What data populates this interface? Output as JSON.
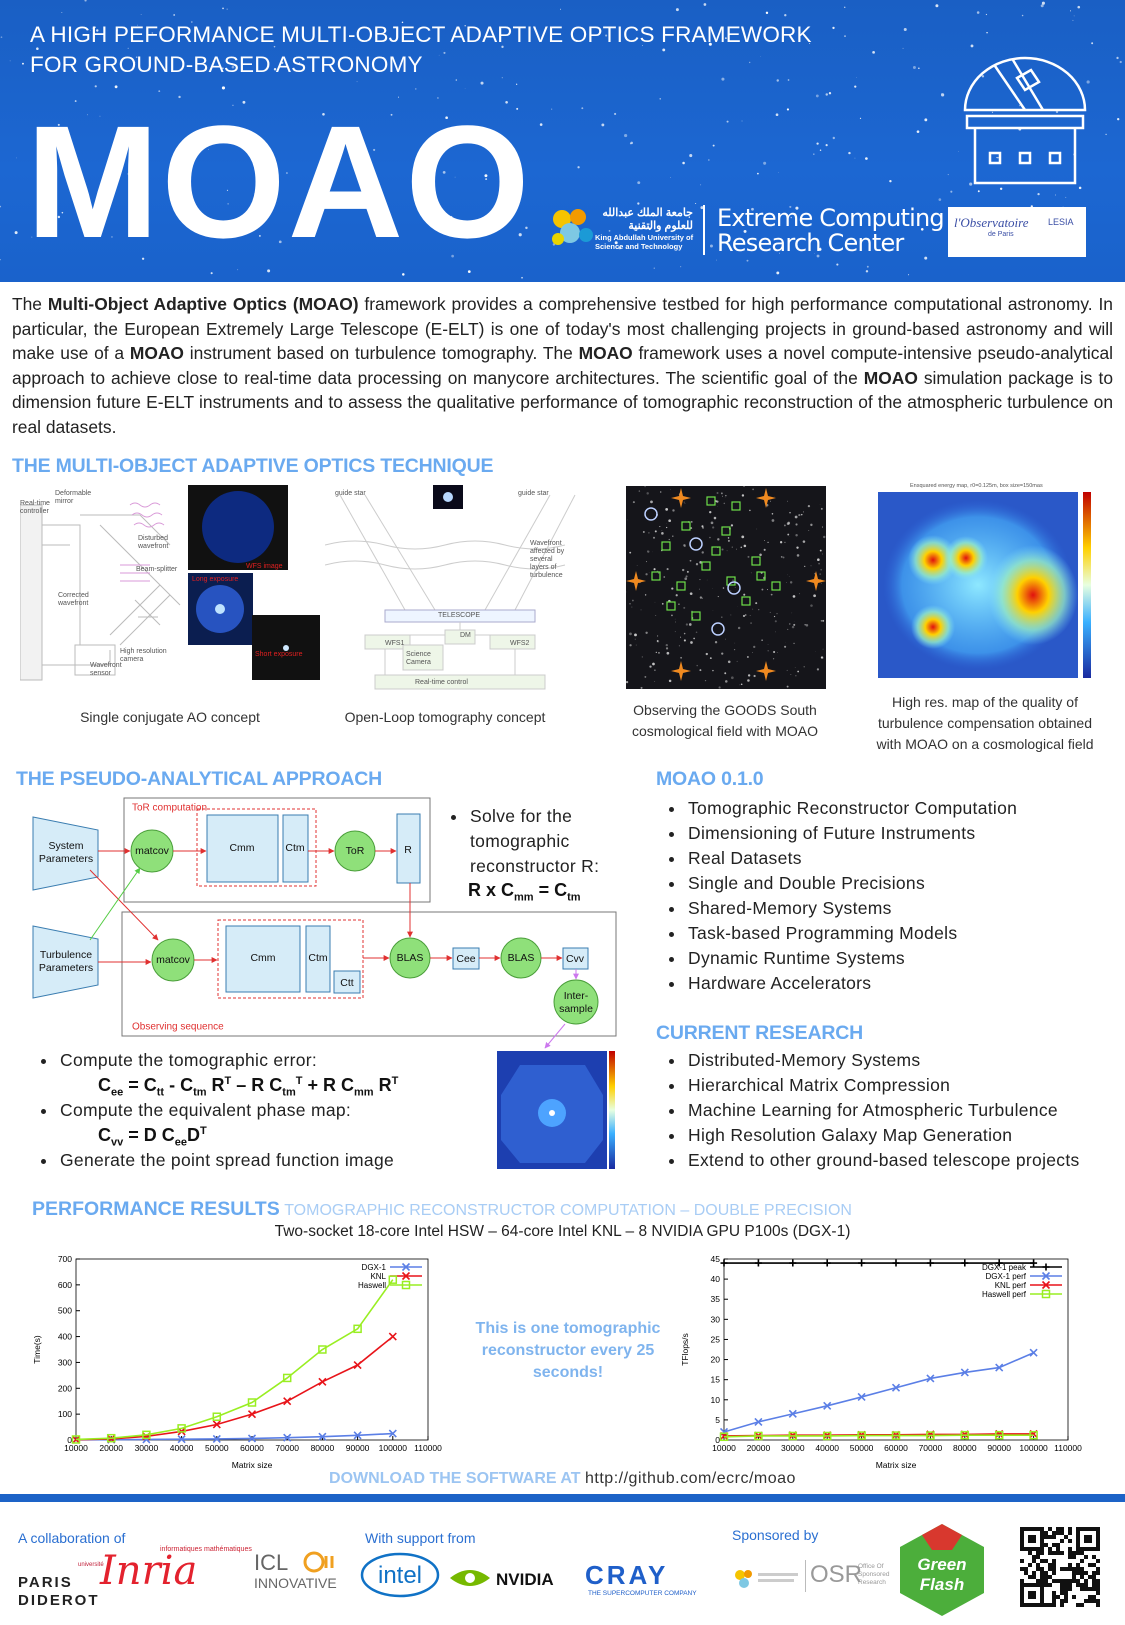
{
  "header": {
    "title": [
      "A HIGH PEFORMANCE MULTI-OBJECT ADAPTIVE OPTICS FRAMEWORK",
      "FOR GROUND-BASED ASTRONOMY"
    ],
    "acronym": "MOAO",
    "kaust": {
      "arabic": "جامعة الملك عبدالله للعلوم والتقنية",
      "name": [
        "King Abdullah University of",
        "Science and Technology"
      ]
    },
    "ecrc": [
      "Extreme Computing",
      "Research Center"
    ],
    "observatoire": {
      "name": "l'Observatoire",
      "sub": "de Paris",
      "lesia": "LESIA"
    }
  },
  "intro": [
    {
      "text": "The ",
      "bold": false
    },
    {
      "text": "Multi-Object Adaptive Optics (MOAO)",
      "bold": true
    },
    {
      "text": " framework provides a comprehensive testbed for high performance computational astronomy. In particular, the European Extremely Large Telescope (E-ELT) is one of today's most challenging projects in ground-based astronomy and will make use of a ",
      "bold": false
    },
    {
      "text": "MOAO",
      "bold": true
    },
    {
      "text": " instrument based on turbulence tomography. The ",
      "bold": false
    },
    {
      "text": "MOAO",
      "bold": true
    },
    {
      "text": " framework uses a novel compute-intensive pseudo-analytical approach to achieve close to real-time data processing on manycore architectures. The scientific goal of the ",
      "bold": false
    },
    {
      "text": "MOAO",
      "bold": true
    },
    {
      "text": " simulation package is to dimension future E-ELT instruments and to assess the qualitative performance of tomographic reconstruction of the atmospheric turbulence on real datasets.",
      "bold": false
    }
  ],
  "technique": {
    "title": "THE MULTI-OBJECT ADAPTIVE OPTICS TECHNIQUE",
    "figures": [
      {
        "caption": [
          "Single conjugate AO concept"
        ],
        "labels": [
          "Real-time controller",
          "Deformable mirror",
          "Disturbed wavefront",
          "Beam-splitter",
          "Corrected wavefront",
          "High resolution camera",
          "Wavefront sensor",
          "WFS image",
          "Long exposure",
          "Short exposure"
        ]
      },
      {
        "caption": [
          "Open-Loop tomography concept"
        ],
        "labels": [
          "guide star",
          "guide star",
          "Wavefront affected by several layers of turbulence",
          "TELESCOPE",
          "DM",
          "WFS1",
          "WFS2",
          "Science Camera",
          "Real-time control"
        ]
      },
      {
        "caption": [
          "Observing the GOODS South",
          "cosmological field with MOAO"
        ]
      },
      {
        "caption": [
          "High res. map of the quality of",
          "turbulence compensation obtained",
          "with MOAO on a cosmological field"
        ],
        "labels": [
          "Ensquared energy map, r0=0.125m, box size=150mas"
        ]
      }
    ]
  },
  "pseudo": {
    "title": "THE PSEUDO-ANALYTICAL APPROACH",
    "diagram": {
      "tor_group": "ToR computation",
      "obs_group": "Observing sequence",
      "system": [
        "System",
        "Parameters"
      ],
      "turbulence": [
        "Turbulence",
        "Parameters"
      ],
      "matcov": "matcov",
      "cmm": "Cmm",
      "ctm": "Ctm",
      "ctt": "Ctt",
      "tor": "ToR",
      "r": "R",
      "blas": "BLAS",
      "cee": "Cee",
      "cvv": "Cvv",
      "intersample": [
        "Inter-",
        "sample"
      ]
    },
    "solve": [
      "Solve for the",
      "tomographic",
      "reconstructor R:"
    ],
    "equations": [
      [
        {
          "text": "R x C",
          "pos": "base"
        },
        {
          "text": "mm",
          "pos": "sub"
        },
        {
          "text": " = C",
          "pos": "base"
        },
        {
          "text": "tm",
          "pos": "sub"
        }
      ],
      [
        {
          "text": "C",
          "pos": "base"
        },
        {
          "text": "ee",
          "pos": "sub"
        },
        {
          "text": " = C",
          "pos": "base"
        },
        {
          "text": "tt",
          "pos": "sub"
        },
        {
          "text": " - C",
          "pos": "base"
        },
        {
          "text": "tm",
          "pos": "sub"
        },
        {
          "text": " R",
          "pos": "base"
        },
        {
          "text": "T",
          "pos": "sup"
        },
        {
          "text": " – R C",
          "pos": "base"
        },
        {
          "text": "tm",
          "pos": "sub"
        },
        {
          "text": "T",
          "pos": "sup"
        },
        {
          "text": " + R C",
          "pos": "base"
        },
        {
          "text": "mm",
          "pos": "sub"
        },
        {
          "text": " R",
          "pos": "base"
        },
        {
          "text": "T",
          "pos": "sup"
        }
      ],
      [
        {
          "text": "C",
          "pos": "base"
        },
        {
          "text": "vv",
          "pos": "sub"
        },
        {
          "text": " = D C",
          "pos": "base"
        },
        {
          "text": "ee",
          "pos": "sub"
        },
        {
          "text": "D",
          "pos": "base"
        },
        {
          "text": "T",
          "pos": "sup"
        }
      ]
    ],
    "steps": [
      "Compute the tomographic error:",
      "Compute the equivalent phase map:",
      "Generate the point spread function image"
    ]
  },
  "release": {
    "title": "MOAO 0.1.0",
    "items": [
      "Tomographic Reconstructor Computation",
      "Dimensioning of Future Instruments",
      "Real Datasets",
      "Single and Double Precisions",
      "Shared-Memory Systems",
      "Task-based Programming Models",
      "Dynamic Runtime Systems",
      "Hardware Accelerators"
    ]
  },
  "research": {
    "title": "CURRENT RESEARCH",
    "items": [
      "Distributed-Memory Systems",
      "Hierarchical Matrix Compression",
      "Machine Learning for Atmospheric Turbulence",
      "High Resolution Galaxy Map Generation",
      "Extend to other ground-based telescope projects"
    ]
  },
  "performance": {
    "title": "PERFORMANCE RESULTS",
    "subtitle": "TOMOGRAPHIC RECONSTRUCTOR COMPUTATION – DOUBLE PRECISION",
    "platforms": "Two-socket 18-core Intel HSW – 64-core Intel KNL – 8 NVIDIA GPU P100s (DGX-1)",
    "note": "This is one tomographic reconstructor every 25 seconds!",
    "download": "DOWNLOAD THE SOFTWARE AT",
    "url": "http://github.com/ecrc/moao"
  },
  "chart_data": [
    {
      "type": "line",
      "xlabel": "Matrix size",
      "ylabel": "Time(s)",
      "x": [
        10000,
        20000,
        30000,
        40000,
        50000,
        60000,
        70000,
        80000,
        90000,
        100000
      ],
      "xlim": [
        10000,
        110000
      ],
      "xticks": [
        10000,
        20000,
        30000,
        40000,
        50000,
        60000,
        70000,
        80000,
        90000,
        100000,
        110000
      ],
      "ylim": [
        0,
        700
      ],
      "yticks": [
        0,
        100,
        200,
        300,
        400,
        500,
        600,
        700
      ],
      "legend": "top-right",
      "series": [
        {
          "name": "DGX-1",
          "color": "#5b7fe6",
          "marker": "x",
          "values": [
            0.5,
            1,
            2,
            3,
            4,
            6,
            9,
            13,
            18,
            25
          ]
        },
        {
          "name": "KNL",
          "color": "#e8141a",
          "marker": "x",
          "values": [
            1,
            4,
            14,
            33,
            60,
            100,
            150,
            225,
            290,
            400
          ]
        },
        {
          "name": "Haswell",
          "color": "#99ee22",
          "marker": "square",
          "values": [
            2,
            7,
            20,
            45,
            90,
            145,
            240,
            350,
            430,
            620
          ]
        }
      ]
    },
    {
      "type": "line",
      "xlabel": "Matrix size",
      "ylabel": "TFlops/s",
      "x": [
        10000,
        20000,
        30000,
        40000,
        50000,
        60000,
        70000,
        80000,
        90000,
        100000
      ],
      "xlim": [
        10000,
        110000
      ],
      "xticks": [
        10000,
        20000,
        30000,
        40000,
        50000,
        60000,
        70000,
        80000,
        90000,
        100000,
        110000
      ],
      "ylim": [
        0,
        45
      ],
      "yticks": [
        0,
        5,
        10,
        15,
        20,
        25,
        30,
        35,
        40,
        45
      ],
      "legend": "top-right",
      "series": [
        {
          "name": "DGX-1 peak",
          "color": "#000000",
          "marker": "plus",
          "values": [
            44,
            44,
            44,
            44,
            44,
            44,
            44,
            44,
            44,
            44
          ]
        },
        {
          "name": "DGX-1 perf",
          "color": "#5b7fe6",
          "marker": "x",
          "values": [
            2,
            4.5,
            6.5,
            8.5,
            10.7,
            13,
            15.3,
            16.8,
            18,
            21.7
          ]
        },
        {
          "name": "KNL perf",
          "color": "#e8141a",
          "marker": "x",
          "values": [
            1,
            1.1,
            1.2,
            1.2,
            1.3,
            1.3,
            1.4,
            1.4,
            1.5,
            1.5
          ]
        },
        {
          "name": "Haswell perf",
          "color": "#99ee22",
          "marker": "square",
          "values": [
            0.8,
            1,
            1,
            1,
            1.1,
            1.1,
            1.1,
            1.2,
            1.2,
            1.2
          ]
        }
      ]
    }
  ],
  "footer": {
    "collaboration": "A collaboration of",
    "support": "With support from",
    "sponsored": "Sponsored by",
    "logos": {
      "paris": [
        "université",
        "PARIS",
        "DIDEROT"
      ],
      "inria": "Inria",
      "inria_sub": [
        "informatiques",
        "mathématiques"
      ],
      "icl": [
        "ICL",
        "INNOVATIVE"
      ],
      "intel": "intel",
      "nvidia": "NVIDIA",
      "cray": "CRAY",
      "cray_sub": "THE SUPERCOMPUTER COMPANY",
      "osr": "OSR",
      "osr_sub": [
        "Office Of",
        "Sponsored",
        "Research"
      ],
      "greenflash": [
        "Green",
        "Flash"
      ]
    }
  }
}
